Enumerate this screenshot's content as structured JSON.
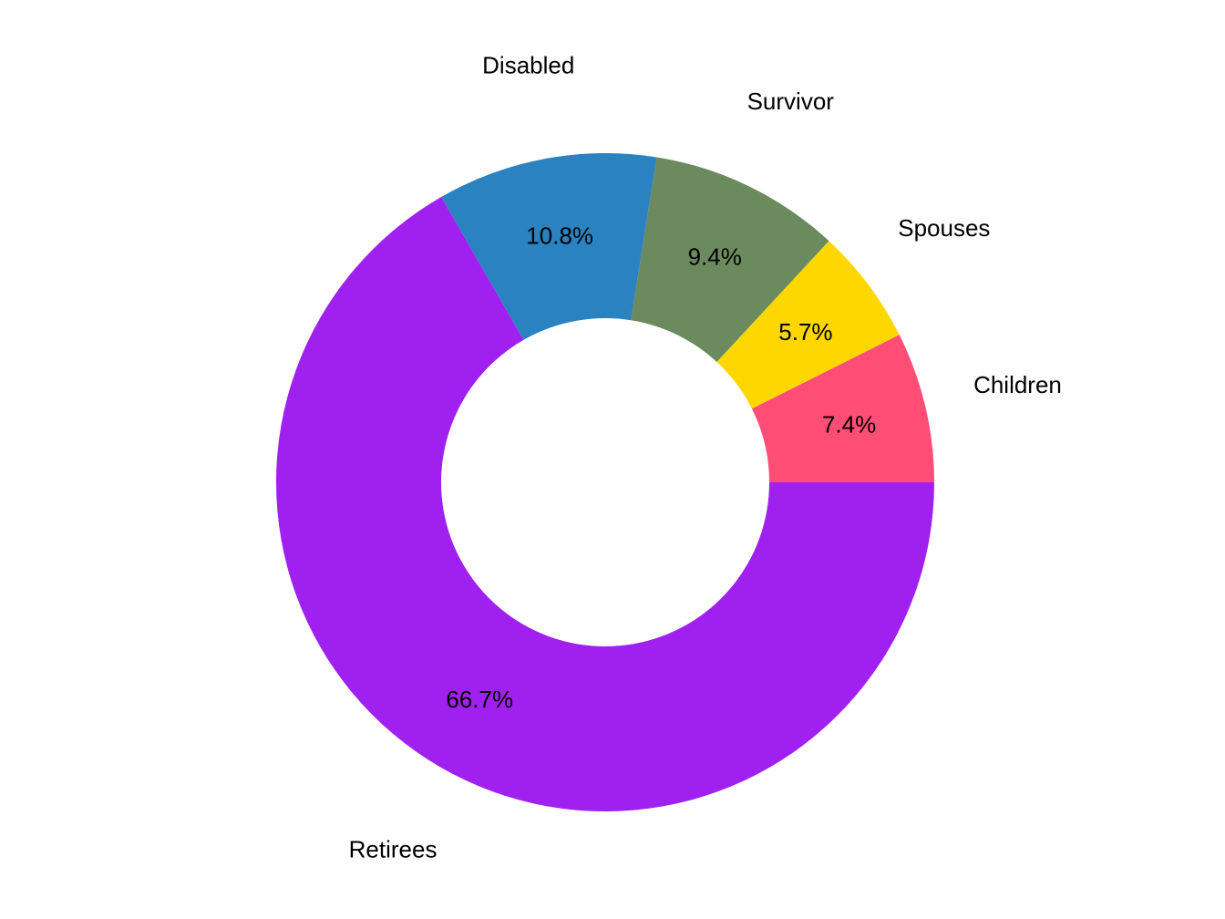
{
  "chart_data": {
    "type": "pie",
    "variant": "donut",
    "direction": "counterclockwise",
    "start": "right (3 o'clock)",
    "slices": [
      {
        "label": "Children",
        "value": 7.4,
        "value_label": "7.4%",
        "color": "#FF4E76"
      },
      {
        "label": "Spouses",
        "value": 5.7,
        "value_label": "5.7%",
        "color": "#FFD700"
      },
      {
        "label": "Survivor",
        "value": 9.4,
        "value_label": "9.4%",
        "color": "#6B8A5E"
      },
      {
        "label": "Disabled",
        "value": 10.8,
        "value_label": "10.8%",
        "color": "#2A82C0"
      },
      {
        "label": "Retirees",
        "value": 66.7,
        "value_label": "66.7%",
        "color": "#A020F0"
      }
    ],
    "title": "",
    "legend": "none"
  }
}
